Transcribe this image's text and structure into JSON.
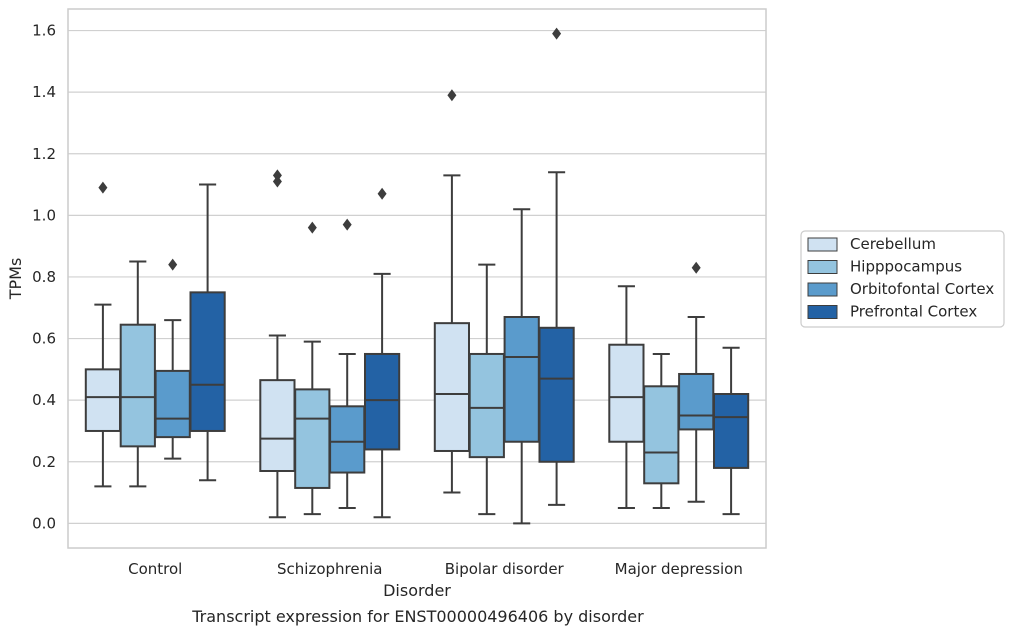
{
  "caption": "Transcript expression for ENST00000496406 by disorder",
  "chart_data": {
    "type": "box",
    "xlabel": "Disorder",
    "ylabel": "TPMs",
    "ylim": [
      -0.08,
      1.67
    ],
    "yticks": [
      0.0,
      0.2,
      0.4,
      0.6,
      0.8,
      1.0,
      1.2,
      1.4,
      1.6
    ],
    "ytick_labels": [
      "0.0",
      "0.2",
      "0.4",
      "0.6",
      "0.8",
      "1.0",
      "1.2",
      "1.4",
      "1.6"
    ],
    "grid": true,
    "legend_position": "center-right, outside plot",
    "categories": [
      "Control",
      "Schizophrenia",
      "Bipolar disorder",
      "Major depression"
    ],
    "series": [
      {
        "name": "Cerebellum",
        "color": "#d0e2f2",
        "boxes": [
          {
            "whislo": 0.12,
            "q1": 0.3,
            "med": 0.41,
            "q3": 0.5,
            "whishi": 0.71,
            "fliers": [
              1.09
            ]
          },
          {
            "whislo": 0.02,
            "q1": 0.17,
            "med": 0.275,
            "q3": 0.465,
            "whishi": 0.61,
            "fliers": [
              1.11,
              1.13
            ]
          },
          {
            "whislo": 0.1,
            "q1": 0.235,
            "med": 0.42,
            "q3": 0.65,
            "whishi": 1.13,
            "fliers": [
              1.39
            ]
          },
          {
            "whislo": 0.05,
            "q1": 0.265,
            "med": 0.41,
            "q3": 0.58,
            "whishi": 0.77,
            "fliers": []
          }
        ]
      },
      {
        "name": "Hipppocampus",
        "color": "#94c4df",
        "boxes": [
          {
            "whislo": 0.12,
            "q1": 0.25,
            "med": 0.41,
            "q3": 0.645,
            "whishi": 0.85,
            "fliers": []
          },
          {
            "whislo": 0.03,
            "q1": 0.115,
            "med": 0.34,
            "q3": 0.435,
            "whishi": 0.59,
            "fliers": [
              0.96
            ]
          },
          {
            "whislo": 0.03,
            "q1": 0.215,
            "med": 0.375,
            "q3": 0.55,
            "whishi": 0.84,
            "fliers": []
          },
          {
            "whislo": 0.05,
            "q1": 0.13,
            "med": 0.23,
            "q3": 0.445,
            "whishi": 0.55,
            "fliers": []
          }
        ]
      },
      {
        "name": "Orbitofontal Cortex",
        "color": "#5a9bcc",
        "boxes": [
          {
            "whislo": 0.21,
            "q1": 0.28,
            "med": 0.34,
            "q3": 0.495,
            "whishi": 0.66,
            "fliers": [
              0.84
            ]
          },
          {
            "whislo": 0.05,
            "q1": 0.165,
            "med": 0.265,
            "q3": 0.38,
            "whishi": 0.55,
            "fliers": [
              0.97
            ]
          },
          {
            "whislo": 0.0,
            "q1": 0.265,
            "med": 0.54,
            "q3": 0.67,
            "whishi": 1.02,
            "fliers": []
          },
          {
            "whislo": 0.07,
            "q1": 0.305,
            "med": 0.35,
            "q3": 0.485,
            "whishi": 0.67,
            "fliers": [
              0.83
            ]
          }
        ]
      },
      {
        "name": "Prefrontal Cortex",
        "color": "#2362a5",
        "boxes": [
          {
            "whislo": 0.14,
            "q1": 0.3,
            "med": 0.45,
            "q3": 0.75,
            "whishi": 1.1,
            "fliers": []
          },
          {
            "whislo": 0.02,
            "q1": 0.24,
            "med": 0.4,
            "q3": 0.55,
            "whishi": 0.81,
            "fliers": [
              1.07
            ]
          },
          {
            "whislo": 0.06,
            "q1": 0.2,
            "med": 0.47,
            "q3": 0.635,
            "whishi": 1.14,
            "fliers": [
              1.59
            ]
          },
          {
            "whislo": 0.03,
            "q1": 0.18,
            "med": 0.345,
            "q3": 0.42,
            "whishi": 0.57,
            "fliers": []
          }
        ]
      }
    ]
  }
}
